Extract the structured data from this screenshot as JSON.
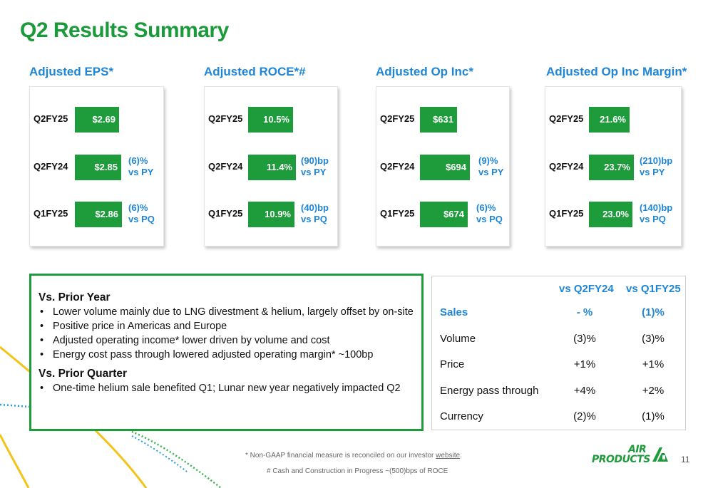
{
  "page": {
    "title": "Q2 Results Summary",
    "page_number": "11"
  },
  "colors": {
    "green": "#1e9b3b",
    "blue": "#1f86d6",
    "yellow": "#f2c318"
  },
  "metrics": [
    {
      "title": "Adjusted EPS*",
      "rows": [
        {
          "label": "Q2FY25",
          "value": "$2.69",
          "delta1": "",
          "delta2": ""
        },
        {
          "label": "Q2FY24",
          "value": "$2.85",
          "delta1": "(6)%",
          "delta2": "vs PY"
        },
        {
          "label": "Q1FY25",
          "value": "$2.86",
          "delta1": "(6)%",
          "delta2": "vs PQ"
        }
      ]
    },
    {
      "title": "Adjusted ROCE*#",
      "rows": [
        {
          "label": "Q2FY25",
          "value": "10.5%",
          "delta1": "",
          "delta2": ""
        },
        {
          "label": "Q2FY24",
          "value": "11.4%",
          "delta1": "(90)bp",
          "delta2": "vs PY"
        },
        {
          "label": "Q1FY25",
          "value": "10.9%",
          "delta1": "(40)bp",
          "delta2": "vs PQ"
        }
      ]
    },
    {
      "title": "Adjusted Op Inc*",
      "rows": [
        {
          "label": "Q2FY25",
          "value": "$631",
          "delta1": "",
          "delta2": ""
        },
        {
          "label": "Q2FY24",
          "value": "$694",
          "delta1": "(9)%",
          "delta2": "vs PY"
        },
        {
          "label": "Q1FY25",
          "value": "$674",
          "delta1": "(6)%",
          "delta2": "vs PQ"
        }
      ]
    },
    {
      "title": "Adjusted Op Inc Margin*",
      "rows": [
        {
          "label": "Q2FY25",
          "value": "21.6%",
          "delta1": "",
          "delta2": ""
        },
        {
          "label": "Q2FY24",
          "value": "23.7%",
          "delta1": "(210)bp",
          "delta2": "vs PY"
        },
        {
          "label": "Q1FY25",
          "value": "23.0%",
          "delta1": "(140)bp",
          "delta2": "vs PQ"
        }
      ]
    }
  ],
  "summary": {
    "prior_year_heading": "Vs. Prior Year",
    "prior_year_points": [
      "Lower volume mainly due to LNG divestment & helium, largely offset by on-site",
      "Positive price in Americas and Europe",
      "Adjusted operating income* lower driven by volume and cost",
      "Energy cost pass through lowered adjusted operating margin* ~100bp"
    ],
    "prior_quarter_heading": "Vs. Prior Quarter",
    "prior_quarter_points": [
      "One-time helium sale benefited Q1; Lunar new year negatively impacted Q2"
    ]
  },
  "vs_table": {
    "headers": [
      "vs Q2FY24",
      "vs Q1FY25"
    ],
    "rows": [
      {
        "label": "Sales",
        "v1": "- %",
        "v2": "(1)%",
        "emphasis": true
      },
      {
        "label": "Volume",
        "v1": "(3)%",
        "v2": "(3)%",
        "emphasis": false
      },
      {
        "label": "Price",
        "v1": "+1%",
        "v2": "+1%",
        "emphasis": false
      },
      {
        "label": "Energy pass through",
        "v1": "+4%",
        "v2": "+2%",
        "emphasis": false
      },
      {
        "label": "Currency",
        "v1": "(2)%",
        "v2": "(1)%",
        "emphasis": false
      }
    ]
  },
  "footnotes": {
    "non_gaap_text": "* Non-GAAP financial measure is reconciled on our investor",
    "non_gaap_link": "website",
    "non_gaap_end": ".",
    "cip": "# Cash and Construction in Progress ~(500)bps of ROCE"
  },
  "logo": {
    "line1": "AIR",
    "line2": "PRODUCTS"
  }
}
